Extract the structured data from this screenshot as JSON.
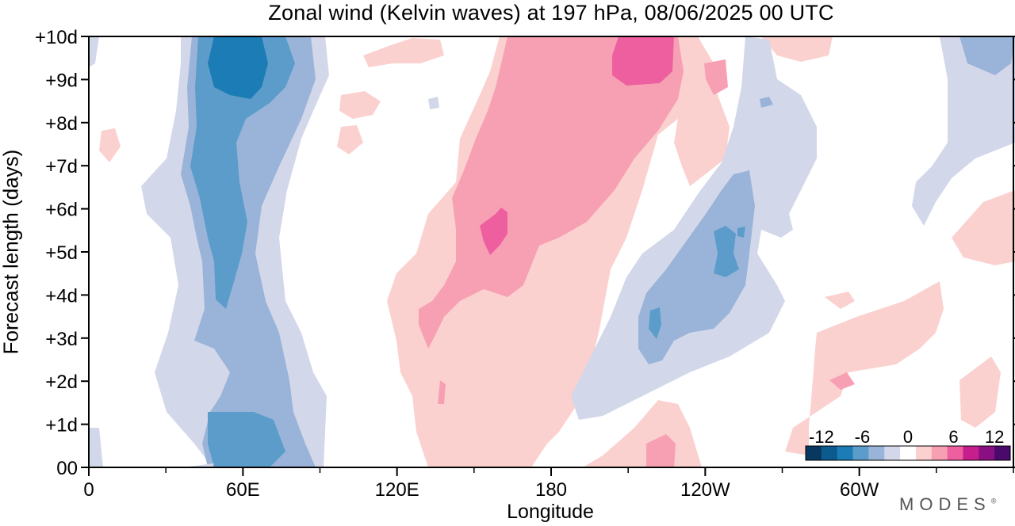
{
  "chart_data": {
    "type": "heatmap",
    "title": "Zonal wind (Kelvin waves) at 197 hPa,  08/06/2025  00 UTC",
    "xlabel": "Longitude",
    "ylabel": "Forecast length (days)",
    "x_range_deg": [
      0,
      360
    ],
    "y_range_days": [
      0,
      10
    ],
    "x_ticks": [
      {
        "deg": 0,
        "label": "0"
      },
      {
        "deg": 60,
        "label": "60E"
      },
      {
        "deg": 120,
        "label": "120E"
      },
      {
        "deg": 180,
        "label": "180"
      },
      {
        "deg": 240,
        "label": "120W"
      },
      {
        "deg": 300,
        "label": "60W"
      }
    ],
    "x_minor_step_deg": 30,
    "y_ticks": [
      {
        "day": 0,
        "label": "00"
      },
      {
        "day": 1,
        "label": "+1d"
      },
      {
        "day": 2,
        "label": "+2d"
      },
      {
        "day": 3,
        "label": "+3d"
      },
      {
        "day": 4,
        "label": "+4d"
      },
      {
        "day": 5,
        "label": "+5d"
      },
      {
        "day": 6,
        "label": "+6d"
      },
      {
        "day": 7,
        "label": "+7d"
      },
      {
        "day": 8,
        "label": "+8d"
      },
      {
        "day": 9,
        "label": "+9d"
      },
      {
        "day": 10,
        "label": "+10d"
      }
    ],
    "colorbar": {
      "labels": [
        "-12",
        "-6",
        "0",
        "6",
        "12"
      ],
      "colors": [
        "#08385f",
        "#0d5a8e",
        "#1c7cb5",
        "#5b9ccb",
        "#9ab4d9",
        "#d3d7ea",
        "#ffffff",
        "#fbd1cf",
        "#f7a0b4",
        "#ee5f9f",
        "#c71e8d",
        "#8a1082",
        "#4a0a6b"
      ]
    },
    "features": [
      {
        "lon_deg": [
          30,
          85
        ],
        "day": [
          0,
          10
        ],
        "value_min": -10,
        "description_level": "negative"
      },
      {
        "lon_deg": [
          118,
          205
        ],
        "day": [
          0,
          10
        ],
        "value_max": 8,
        "description_level": "positive"
      },
      {
        "lon_deg": [
          210,
          280
        ],
        "day": [
          1.5,
          7.5
        ],
        "value_min": -7,
        "description_level": "negative"
      },
      {
        "lon_deg": [
          280,
          355
        ],
        "day": [
          0,
          6
        ],
        "value_max": 4,
        "description_level": "positive"
      },
      {
        "lon_deg": [
          330,
          360
        ],
        "day": [
          4,
          10
        ],
        "value_min": -4,
        "description_level": "negative"
      }
    ]
  },
  "brand": "MODES",
  "brand_mark": "®"
}
